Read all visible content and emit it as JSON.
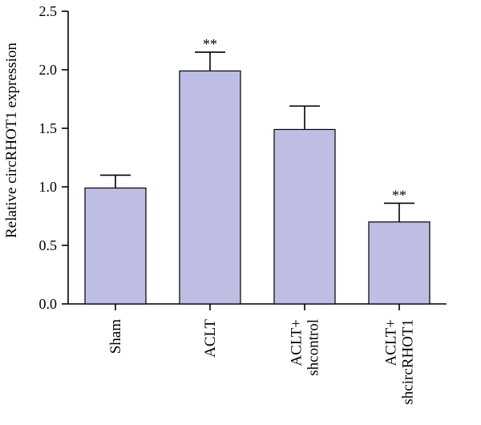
{
  "chart_data": {
    "type": "bar",
    "categories": [
      "Sham",
      "ACLT",
      "ACLT+\nshcontrol",
      "ACLT+\nshcircRHOT1"
    ],
    "values": [
      0.99,
      1.99,
      1.49,
      0.7
    ],
    "errors": [
      0.11,
      0.16,
      0.2,
      0.16
    ],
    "annotations": [
      "",
      "**",
      "",
      "**"
    ],
    "ylabel": "Relative circRHOT1 expression",
    "xlabel": "",
    "title": "",
    "ylim": [
      0,
      2.5
    ],
    "yticks": [
      "0.0",
      "0.5",
      "1.0",
      "1.5",
      "2.0",
      "2.5"
    ],
    "grid": false,
    "bar_color": "#bebde3"
  }
}
